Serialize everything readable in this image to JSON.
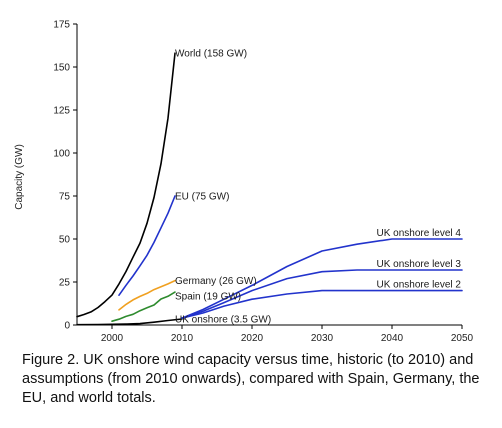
{
  "caption": "Figure 2. UK onshore wind capacity versus time, historic (to 2010) and assumptions (from 2010 onwards), compared with Spain, Germany, the EU, and world totals.",
  "chart_data": {
    "type": "line",
    "ylabel": "Capacity (GW)",
    "xlabel": "",
    "xlim": [
      1995,
      2050
    ],
    "ylim": [
      0,
      175
    ],
    "xticks": [
      2000,
      2010,
      2020,
      2030,
      2040,
      2050
    ],
    "yticks": [
      0,
      25,
      50,
      75,
      100,
      125,
      150,
      175
    ],
    "grid": false,
    "series": [
      {
        "name": "World (158 GW)",
        "color": "#000000",
        "x": [
          1995,
          1996,
          1997,
          1998,
          1999,
          2000,
          2001,
          2002,
          2003,
          2004,
          2005,
          2006,
          2007,
          2008,
          2009
        ],
        "y": [
          4.8,
          6.1,
          7.6,
          10.2,
          13.6,
          17.4,
          23.9,
          31.1,
          39.4,
          47.6,
          59.1,
          74.1,
          93.8,
          120.3,
          158
        ]
      },
      {
        "name": "EU (75 GW)",
        "color": "#2233cc",
        "x": [
          2001,
          2002,
          2003,
          2004,
          2005,
          2006,
          2007,
          2008,
          2009
        ],
        "y": [
          17.3,
          23.1,
          28.5,
          34.4,
          40.5,
          48.0,
          56.5,
          65.0,
          75
        ]
      },
      {
        "name": "Germany (26 GW)",
        "color": "#f0a020",
        "x": [
          2001,
          2002,
          2003,
          2004,
          2005,
          2006,
          2007,
          2008,
          2009
        ],
        "y": [
          8.8,
          12.0,
          14.6,
          16.6,
          18.4,
          20.6,
          22.2,
          23.9,
          25.8
        ]
      },
      {
        "name": "Spain (19 GW)",
        "color": "#2e8b2e",
        "x": [
          2000,
          2001,
          2002,
          2003,
          2004,
          2005,
          2006,
          2007,
          2008,
          2009
        ],
        "y": [
          2.2,
          3.4,
          5.0,
          6.2,
          8.3,
          10.0,
          11.6,
          15.1,
          16.7,
          19.1
        ]
      },
      {
        "name": "UK onshore (3.5 GW)",
        "color": "#000000",
        "x": [
          1995,
          1998,
          2000,
          2002,
          2004,
          2006,
          2008,
          2010
        ],
        "y": [
          0.2,
          0.3,
          0.4,
          0.5,
          0.8,
          1.6,
          2.6,
          3.5
        ]
      },
      {
        "name": "UK onshore level 4",
        "color": "#2233cc",
        "x": [
          2010,
          2013,
          2016,
          2020,
          2025,
          2030,
          2035,
          2040,
          2045,
          2050
        ],
        "y": [
          4,
          9,
          15,
          23,
          34,
          43,
          47,
          50,
          50,
          50
        ]
      },
      {
        "name": "UK onshore level 3",
        "color": "#2233cc",
        "x": [
          2010,
          2013,
          2016,
          2020,
          2025,
          2030,
          2035,
          2040,
          2045,
          2050
        ],
        "y": [
          4,
          8,
          13,
          20,
          27,
          31,
          32,
          32,
          32,
          32
        ]
      },
      {
        "name": "UK onshore level 2",
        "color": "#2233cc",
        "x": [
          2010,
          2013,
          2016,
          2020,
          2025,
          2030,
          2035,
          2040,
          2045,
          2050
        ],
        "y": [
          4,
          7,
          11,
          15,
          18,
          20,
          20,
          20,
          20,
          20
        ]
      }
    ],
    "annotations": [
      {
        "text": "World (158 GW)",
        "x": 2009,
        "y": 158,
        "anchor": "start"
      },
      {
        "text": "EU (75 GW)",
        "x": 2009,
        "y": 75,
        "anchor": "start"
      },
      {
        "text": "Germany (26 GW)",
        "x": 2009,
        "y": 26,
        "anchor": "start"
      },
      {
        "text": "Spain (19 GW)",
        "x": 2009,
        "y": 17,
        "anchor": "start"
      },
      {
        "text": "UK onshore (3.5 GW)",
        "x": 2009,
        "y": 3.5,
        "anchor": "start"
      },
      {
        "text": "UK onshore level 4",
        "x": 2050,
        "y": 50,
        "anchor": "end"
      },
      {
        "text": "UK onshore level 3",
        "x": 2050,
        "y": 32,
        "anchor": "end"
      },
      {
        "text": "UK onshore level 2",
        "x": 2050,
        "y": 20,
        "anchor": "end"
      }
    ]
  }
}
